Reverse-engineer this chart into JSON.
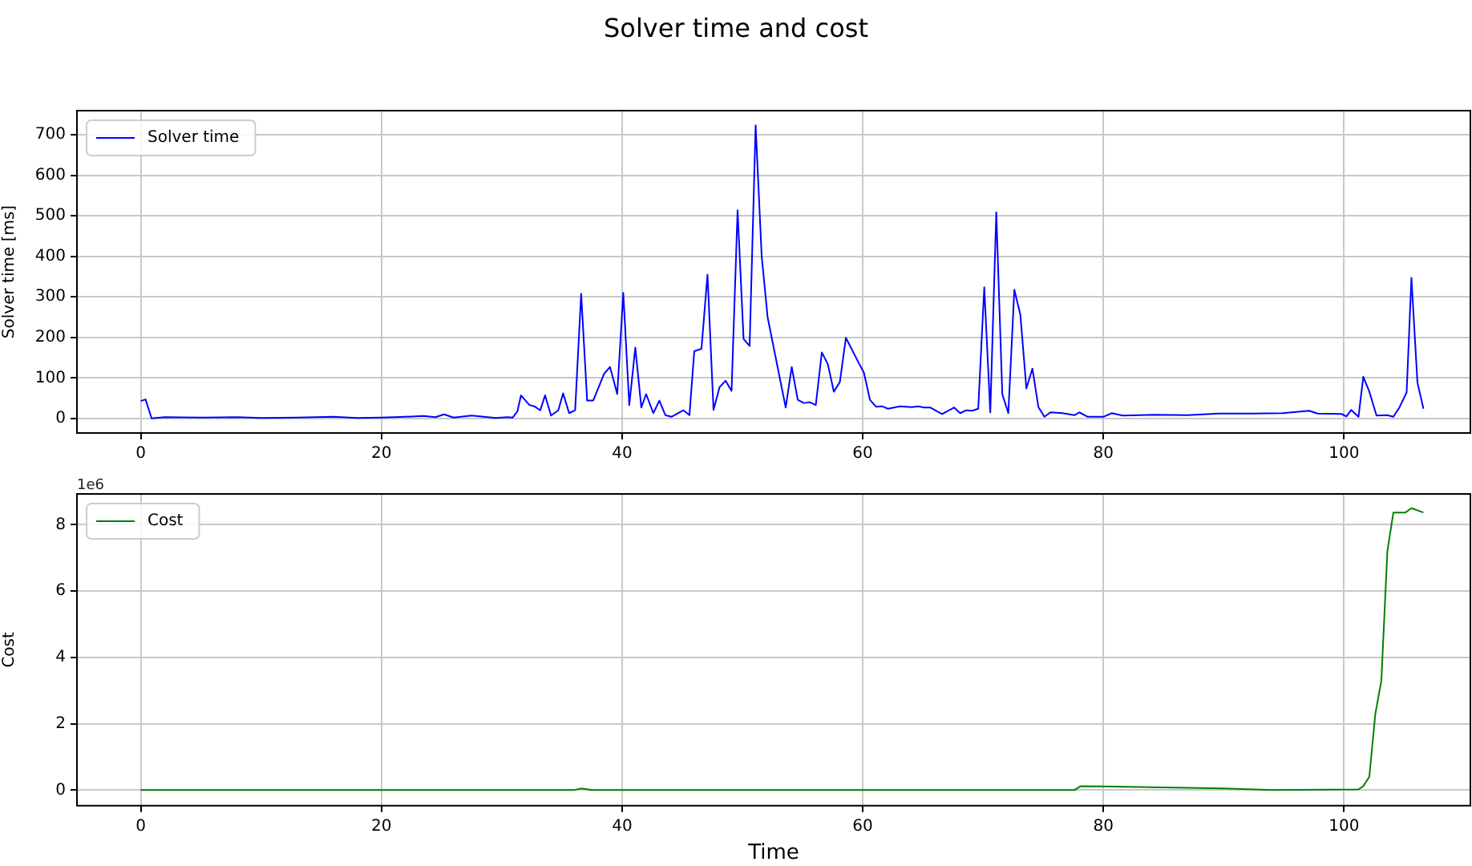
{
  "chart_data": [
    {
      "type": "line",
      "title": "Solver time and cost",
      "ylabel": "Solver time [ms]",
      "x": [
        0,
        0.4,
        0.9,
        2,
        5,
        8,
        10,
        13,
        16,
        18,
        20,
        22,
        23.5,
        24.5,
        25.2,
        26,
        27.5,
        28.5,
        29.5,
        30.5,
        30.9,
        31.3,
        31.6,
        32.3,
        32.7,
        33.2,
        33.6,
        34.1,
        34.7,
        35.1,
        35.6,
        36.1,
        36.6,
        37.1,
        37.6,
        38.5,
        39.0,
        39.6,
        40.1,
        40.6,
        41.1,
        41.6,
        42.0,
        42.6,
        43.1,
        43.6,
        44.1,
        45.1,
        45.6,
        46.0,
        46.6,
        47.1,
        47.6,
        48.1,
        48.6,
        49.1,
        49.6,
        50.1,
        50.6,
        51.1,
        51.6,
        52.1,
        53.6,
        54.1,
        54.6,
        55.1,
        55.6,
        56.1,
        56.6,
        57.1,
        57.6,
        58.1,
        58.6,
        59.6,
        60.1,
        60.6,
        61.1,
        61.6,
        62.1,
        63.1,
        64.1,
        64.6,
        65.1,
        65.6,
        66.6,
        67.6,
        68.1,
        68.6,
        69.1,
        69.6,
        70.1,
        70.6,
        71.1,
        71.6,
        72.1,
        72.6,
        73.1,
        73.6,
        74.1,
        74.6,
        75.1,
        75.6,
        76.6,
        77.6,
        78.0,
        78.7,
        80.0,
        80.7,
        81.6,
        84.3,
        87,
        89.6,
        92.3,
        94.9,
        97.1,
        97.8,
        99.8,
        100.2,
        100.6,
        101.2,
        101.6,
        102.1,
        102.7,
        103.6,
        104.1,
        104.6,
        105.2,
        105.6,
        106.1,
        106.6
      ],
      "series": [
        {
          "name": "Solver time",
          "color": "#0000ff",
          "values": [
            43,
            47,
            0,
            3,
            2,
            3,
            1,
            2,
            4,
            1,
            2,
            4,
            6,
            3,
            10,
            2,
            7,
            4,
            1,
            3,
            2,
            17,
            57,
            33,
            30,
            20,
            57,
            7,
            20,
            62,
            13,
            20,
            308,
            44,
            44,
            110,
            127,
            60,
            310,
            33,
            175,
            27,
            60,
            13,
            44,
            8,
            4,
            20,
            8,
            166,
            172,
            355,
            21,
            77,
            93,
            68,
            514,
            196,
            179,
            724,
            402,
            249,
            27,
            127,
            46,
            38,
            40,
            33,
            163,
            134,
            66,
            90,
            199,
            141,
            113,
            46,
            29,
            30,
            24,
            30,
            28,
            30,
            27,
            27,
            11,
            27,
            13,
            20,
            19,
            24,
            324,
            15,
            509,
            60,
            13,
            318,
            256,
            74,
            123,
            28,
            4,
            15,
            13,
            8,
            15,
            4,
            4,
            13,
            7,
            9,
            8,
            12,
            12,
            13,
            19,
            12,
            11,
            5,
            21,
            4,
            103,
            66,
            7,
            8,
            4,
            27,
            64,
            347,
            88,
            24
          ]
        }
      ],
      "xlim": [
        -5.3,
        110.5
      ],
      "xticks": [
        0,
        20,
        40,
        60,
        80,
        100
      ],
      "ylim": [
        -36,
        760
      ],
      "yticks": [
        0,
        100,
        200,
        300,
        400,
        500,
        600,
        700
      ],
      "grid": true,
      "legend": "top left",
      "marker": "none",
      "line_style": "solid"
    },
    {
      "type": "line",
      "xlabel": "Time",
      "ylabel": "Cost",
      "annotations": [
        "1e6"
      ],
      "x": [
        0,
        20,
        30,
        36,
        36.6,
        37.5,
        50,
        77.6,
        78.1,
        80,
        90,
        94,
        101.2,
        101.6,
        102.1,
        102.6,
        103.1,
        103.6,
        104.1,
        105.1,
        105.6,
        106.6
      ],
      "series": [
        {
          "name": "Cost",
          "color": "#008000",
          "values": [
            0,
            0,
            0,
            0,
            0.05,
            0,
            0,
            0,
            0.12,
            0.11,
            0.05,
            0,
            0.02,
            0.12,
            0.4,
            2.3,
            3.3,
            7.2,
            8.37,
            8.37,
            8.5,
            8.37
          ]
        }
      ],
      "xlim": [
        -5.3,
        110.5
      ],
      "xticks": [
        0,
        20,
        40,
        60,
        80,
        100
      ],
      "ylim": [
        -0.47,
        8.93
      ],
      "yticks": [
        0,
        2,
        4,
        6,
        8
      ],
      "grid": true,
      "legend": "top left",
      "marker": "none",
      "line_style": "solid"
    }
  ]
}
